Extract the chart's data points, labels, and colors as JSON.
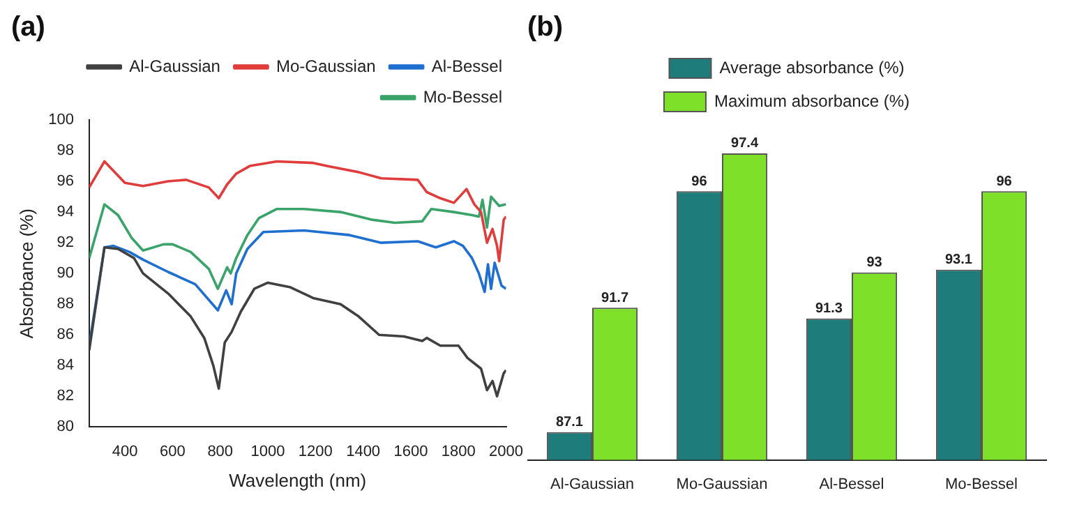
{
  "chart_data": [
    {
      "type": "line",
      "title": "(a)",
      "xlabel": "Wavelength (nm)",
      "ylabel": "Absorbance (%)",
      "xlim": [
        250,
        2000
      ],
      "xticks": [
        400,
        600,
        800,
        1000,
        1200,
        1400,
        1600,
        1800,
        2000
      ],
      "ylim": [
        80,
        100
      ],
      "yticks": [
        80,
        82,
        84,
        86,
        88,
        90,
        92,
        94,
        96,
        98,
        100
      ],
      "grid": false,
      "legend": "top right",
      "marker": "none",
      "line_style": "solid",
      "series": [
        {
          "name": "Al-Gaussian",
          "color": "#404040",
          "x": [
            250,
            314,
            371,
            438,
            476,
            581,
            676,
            733,
            771,
            794,
            819,
            848,
            886,
            943,
            1000,
            1095,
            1190,
            1305,
            1381,
            1467,
            1571,
            1648,
            1667,
            1724,
            1800,
            1838,
            1895,
            1920,
            1943,
            1962,
            1990,
            2000
          ],
          "values": [
            85,
            91.7,
            91.6,
            91,
            90,
            88.7,
            87.2,
            85.8,
            84,
            82.5,
            85.5,
            86.2,
            87.5,
            89,
            89.4,
            89.1,
            88.4,
            88,
            87.2,
            86,
            85.9,
            85.6,
            85.8,
            85.3,
            85.3,
            84.5,
            83.8,
            82.4,
            83,
            82,
            83.5,
            83.7
          ]
        },
        {
          "name": "Mo-Gaussian",
          "color": "#e03c3c",
          "x": [
            250,
            314,
            400,
            476,
            581,
            657,
            752,
            794,
            829,
            867,
            924,
            1038,
            1190,
            1248,
            1381,
            1476,
            1629,
            1667,
            1724,
            1781,
            1834,
            1867,
            1895,
            1920,
            1943,
            1962,
            1971,
            1990,
            2000
          ],
          "values": [
            95.6,
            97.3,
            95.9,
            95.7,
            96,
            96.1,
            95.6,
            94.9,
            95.8,
            96.5,
            97,
            97.3,
            97.2,
            97,
            96.6,
            96.2,
            96.1,
            95.3,
            94.9,
            94.6,
            95.5,
            94.5,
            94,
            92,
            92.9,
            91.8,
            90.8,
            93.5,
            93.7
          ]
        },
        {
          "name": "Al-Bessel",
          "color": "#1f6fd0",
          "x": [
            250,
            314,
            352,
            419,
            476,
            581,
            695,
            790,
            825,
            848,
            867,
            914,
            981,
            1152,
            1343,
            1476,
            1629,
            1705,
            1781,
            1819,
            1857,
            1886,
            1910,
            1924,
            1937,
            1952,
            1981,
            2000
          ],
          "values": [
            85.3,
            91.7,
            91.8,
            91.4,
            90.9,
            90.1,
            89.3,
            87.6,
            88.9,
            88,
            90,
            91.6,
            92.7,
            92.8,
            92.5,
            92,
            92.1,
            91.7,
            92.1,
            91.8,
            91,
            90,
            88.8,
            90.6,
            89,
            90.7,
            89.2,
            89
          ]
        },
        {
          "name": "Mo-Bessel",
          "color": "#3aa36a",
          "x": [
            250,
            314,
            371,
            429,
            476,
            562,
            600,
            676,
            752,
            790,
            829,
            844,
            867,
            914,
            962,
            1038,
            1152,
            1305,
            1438,
            1533,
            1648,
            1686,
            1781,
            1857,
            1886,
            1901,
            1920,
            1937,
            1971,
            2000
          ],
          "values": [
            91,
            94.5,
            93.8,
            92.3,
            91.5,
            91.9,
            91.9,
            91.4,
            90.3,
            89,
            90.4,
            90,
            91,
            92.5,
            93.6,
            94.2,
            94.2,
            94,
            93.5,
            93.3,
            93.4,
            94.2,
            94,
            93.8,
            93.7,
            94.8,
            93,
            95,
            94.4,
            94.5
          ]
        }
      ]
    },
    {
      "type": "bar",
      "title": "(b)",
      "categories": [
        "Al-Gaussian",
        "Mo-Gaussian",
        "Al-Bessel",
        "Mo-Bessel"
      ],
      "tick_labels": "x",
      "legend": "top",
      "data_labels": true,
      "series": [
        {
          "name": "Average absorbance (%)",
          "color": "#1e7d7a",
          "values": [
            87.1,
            96,
            91.3,
            93.1
          ]
        },
        {
          "name": "Maximum absorbance (%)",
          "color": "#7fe02a",
          "values": [
            91.7,
            97.4,
            93,
            96
          ]
        }
      ]
    }
  ]
}
